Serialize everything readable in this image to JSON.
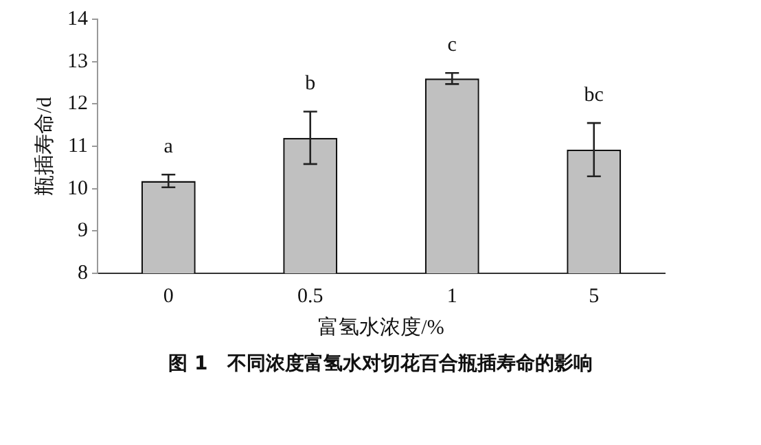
{
  "chart_data": {
    "type": "bar",
    "title": "图 1　不同浓度富氢水对切花百合瓶插寿命的影响",
    "xlabel": "富氢水浓度/%",
    "ylabel": "瓶插寿命/d",
    "categories": [
      "0",
      "0.5",
      "1",
      "5"
    ],
    "values": [
      10.18,
      11.2,
      12.6,
      10.92
    ],
    "errors": [
      0.15,
      0.62,
      0.13,
      0.63
    ],
    "color": "#c0c0c0",
    "ylim": [
      8,
      14
    ],
    "yticks": [
      8,
      9,
      10,
      11,
      12,
      13,
      14
    ],
    "grid": false,
    "legend": false,
    "annotations": [
      "a",
      "b",
      "c",
      "bc"
    ]
  }
}
